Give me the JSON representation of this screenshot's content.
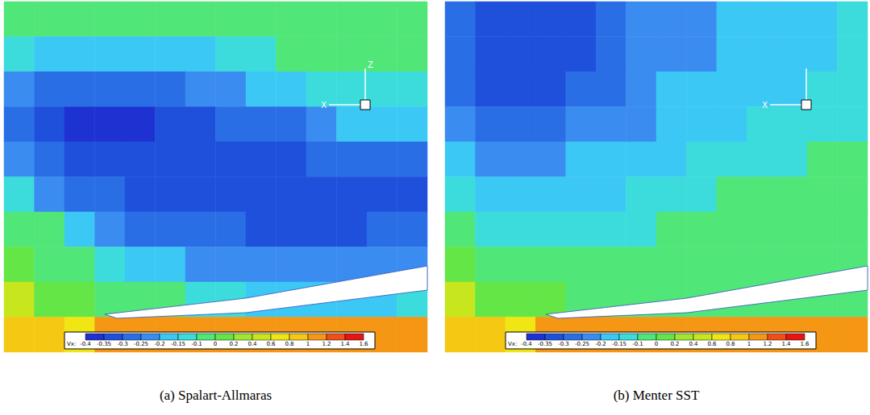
{
  "chart_data": [
    {
      "type": "heatmap",
      "title": "(a) Spalart-Allmaras",
      "tick_labels": false,
      "cells": [
        [
          -0.08,
          -0.08,
          -0.08,
          -0.1,
          -0.1,
          -0.1,
          -0.08,
          -0.05,
          -0.05,
          -0.05,
          -0.05,
          -0.05,
          -0.05,
          -0.05
        ],
        [
          -0.12,
          -0.17,
          -0.18,
          -0.18,
          -0.17,
          -0.17,
          -0.16,
          -0.13,
          -0.12,
          -0.08,
          -0.08,
          -0.07,
          -0.07,
          -0.07
        ],
        [
          -0.22,
          -0.28,
          -0.3,
          -0.3,
          -0.28,
          -0.27,
          -0.25,
          -0.22,
          -0.2,
          -0.17,
          -0.15,
          -0.13,
          -0.12,
          -0.12
        ],
        [
          -0.27,
          -0.33,
          -0.36,
          -0.37,
          -0.36,
          -0.34,
          -0.32,
          -0.3,
          -0.28,
          -0.26,
          -0.22,
          -0.2,
          -0.18,
          -0.17
        ],
        [
          -0.22,
          -0.3,
          -0.33,
          -0.34,
          -0.34,
          -0.33,
          -0.32,
          -0.32,
          -0.32,
          -0.31,
          -0.3,
          -0.28,
          -0.27,
          -0.26
        ],
        [
          -0.12,
          -0.22,
          -0.27,
          -0.3,
          -0.31,
          -0.32,
          -0.32,
          -0.33,
          -0.33,
          -0.33,
          -0.33,
          -0.32,
          -0.32,
          -0.31
        ],
        [
          -0.05,
          -0.1,
          -0.16,
          -0.22,
          -0.26,
          -0.28,
          -0.29,
          -0.3,
          -0.31,
          -0.31,
          -0.31,
          -0.31,
          -0.3,
          -0.3
        ],
        [
          0.05,
          -0.03,
          -0.07,
          -0.12,
          -0.16,
          -0.19,
          -0.21,
          -0.23,
          -0.25,
          -0.25,
          -0.24,
          -0.23,
          -0.22,
          -0.21
        ],
        [
          0.5,
          0.1,
          0.05,
          -0.02,
          -0.06,
          -0.09,
          -0.12,
          -0.14,
          -0.16,
          -0.17,
          -0.17,
          -0.17,
          -0.16,
          -0.15
        ],
        [
          0.9,
          0.8,
          0.7,
          1.1,
          1.1,
          1.1,
          1.1,
          1.1,
          1.1,
          1.1,
          1.1,
          1.1,
          1.1,
          1.1
        ]
      ],
      "colorbar": {
        "label": "Vx:",
        "ticks": [
          -0.4,
          -0.35,
          -0.3,
          -0.25,
          -0.2,
          -0.15,
          -0.1,
          0,
          0.2,
          0.4,
          0.6,
          0.8,
          1,
          1.2,
          1.4,
          1.6
        ],
        "colors": [
          "#1e32d2",
          "#1e50dc",
          "#2a6ee6",
          "#3a8cf0",
          "#3cc8f5",
          "#3cdcdc",
          "#50e678",
          "#64e646",
          "#a0e632",
          "#c8e61e",
          "#f0e614",
          "#f5c814",
          "#f59614",
          "#f05014",
          "#e61414"
        ]
      },
      "triad_labels": {
        "x": "X",
        "z": "Z"
      }
    },
    {
      "type": "heatmap",
      "title": "(b) Menter SST",
      "tick_labels": false,
      "cells": [
        [
          -0.3,
          -0.33,
          -0.34,
          -0.34,
          -0.33,
          -0.3,
          -0.25,
          -0.23,
          -0.22,
          -0.2,
          -0.18,
          -0.18,
          -0.17,
          -0.15
        ],
        [
          -0.3,
          -0.33,
          -0.34,
          -0.34,
          -0.33,
          -0.3,
          -0.25,
          -0.22,
          -0.21,
          -0.19,
          -0.18,
          -0.17,
          -0.16,
          -0.15
        ],
        [
          -0.28,
          -0.31,
          -0.32,
          -0.32,
          -0.3,
          -0.27,
          -0.23,
          -0.2,
          -0.19,
          -0.18,
          -0.17,
          -0.16,
          -0.15,
          -0.14
        ],
        [
          -0.25,
          -0.28,
          -0.28,
          -0.27,
          -0.25,
          -0.23,
          -0.21,
          -0.19,
          -0.17,
          -0.16,
          -0.15,
          -0.14,
          -0.13,
          -0.12
        ],
        [
          -0.2,
          -0.23,
          -0.23,
          -0.22,
          -0.2,
          -0.19,
          -0.18,
          -0.17,
          -0.15,
          -0.13,
          -0.12,
          -0.11,
          -0.1,
          -0.1
        ],
        [
          -0.13,
          -0.17,
          -0.18,
          -0.18,
          -0.17,
          -0.16,
          -0.15,
          -0.13,
          -0.11,
          -0.09,
          -0.08,
          -0.07,
          -0.07,
          -0.06
        ],
        [
          -0.06,
          -0.11,
          -0.14,
          -0.15,
          -0.14,
          -0.13,
          -0.11,
          -0.09,
          -0.07,
          -0.06,
          -0.05,
          -0.04,
          -0.04,
          -0.04
        ],
        [
          0.05,
          -0.04,
          -0.07,
          -0.08,
          -0.08,
          -0.07,
          -0.06,
          -0.05,
          -0.04,
          -0.03,
          -0.03,
          -0.03,
          -0.03,
          -0.03
        ],
        [
          0.5,
          0.1,
          0.05,
          0.02,
          -0.02,
          -0.03,
          -0.03,
          -0.03,
          -0.03,
          -0.03,
          -0.03,
          -0.03,
          -0.03,
          -0.03
        ],
        [
          0.9,
          0.8,
          0.7,
          1.1,
          1.1,
          1.1,
          1.1,
          1.1,
          1.1,
          1.1,
          1.1,
          1.1,
          1.1,
          1.1
        ]
      ],
      "colorbar": {
        "label": "Vx:",
        "ticks": [
          -0.4,
          -0.35,
          -0.3,
          -0.25,
          -0.2,
          -0.15,
          -0.1,
          0,
          0.2,
          0.4,
          0.6,
          0.8,
          1,
          1.2,
          1.4,
          1.6
        ],
        "colors": [
          "#1e32d2",
          "#1e50dc",
          "#2a6ee6",
          "#3a8cf0",
          "#3cc8f5",
          "#3cdcdc",
          "#50e678",
          "#64e646",
          "#a0e632",
          "#c8e61e",
          "#f0e614",
          "#f5c814",
          "#f59614",
          "#f05014",
          "#e61414"
        ]
      },
      "triad_labels": {
        "x": "X"
      }
    }
  ]
}
